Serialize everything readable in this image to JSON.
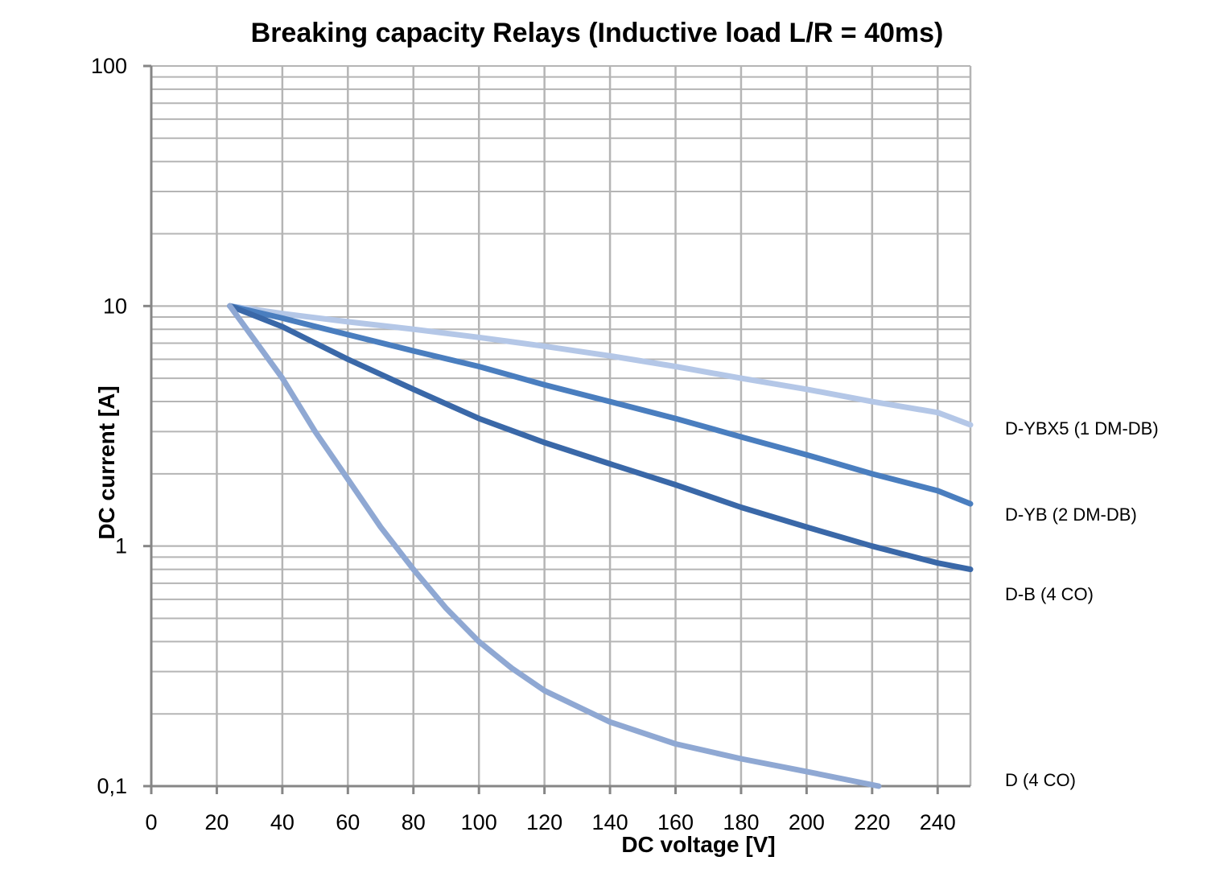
{
  "chart_data": {
    "type": "line",
    "title": "Breaking capacity Relays (Inductive load L/R = 40ms)",
    "xlabel": "DC voltage [V]",
    "ylabel": "DC current [A]",
    "xlim": [
      0,
      250
    ],
    "ylim": [
      0.1,
      100
    ],
    "yscale": "log",
    "grid": true,
    "legend": "right",
    "x_ticks": [
      0,
      20,
      40,
      60,
      80,
      100,
      120,
      140,
      160,
      180,
      200,
      220,
      240
    ],
    "x_tick_labels": [
      "0",
      "20",
      "40",
      "60",
      "80",
      "100",
      "120",
      "140",
      "160",
      "180",
      "200",
      "220",
      "240"
    ],
    "y_ticks": [
      0.1,
      1,
      10,
      100
    ],
    "y_tick_labels": [
      "0,1",
      "1",
      "10",
      "100"
    ],
    "series": [
      {
        "name": "D-YBX5 (1 DM-DB)",
        "color": "#b4c7e7",
        "x": [
          24,
          40,
          60,
          80,
          100,
          120,
          140,
          160,
          180,
          200,
          220,
          240,
          250
        ],
        "y": [
          10,
          9.3,
          8.6,
          8.0,
          7.4,
          6.8,
          6.2,
          5.6,
          5.0,
          4.5,
          4.0,
          3.6,
          3.2
        ]
      },
      {
        "name": "D-YB (2 DM-DB)",
        "color": "#4a7ebf",
        "x": [
          24,
          40,
          60,
          80,
          100,
          120,
          140,
          160,
          180,
          200,
          220,
          240,
          250
        ],
        "y": [
          10,
          8.9,
          7.6,
          6.5,
          5.6,
          4.7,
          4.0,
          3.4,
          2.85,
          2.4,
          2.0,
          1.7,
          1.5
        ]
      },
      {
        "name": "D-B (4 CO)",
        "color": "#3a68a8",
        "x": [
          24,
          40,
          60,
          80,
          100,
          120,
          140,
          160,
          180,
          200,
          220,
          240,
          250
        ],
        "y": [
          10,
          8.2,
          6.0,
          4.5,
          3.4,
          2.7,
          2.2,
          1.8,
          1.45,
          1.2,
          1.0,
          0.85,
          0.8
        ]
      },
      {
        "name": "D (4 CO)",
        "color": "#8fa8d3",
        "x": [
          24,
          40,
          50,
          60,
          70,
          80,
          90,
          100,
          110,
          120,
          140,
          160,
          180,
          200,
          222
        ],
        "y": [
          10,
          5.0,
          3.0,
          1.9,
          1.2,
          0.8,
          0.55,
          0.4,
          0.31,
          0.25,
          0.185,
          0.15,
          0.13,
          0.115,
          0.1
        ]
      }
    ]
  }
}
